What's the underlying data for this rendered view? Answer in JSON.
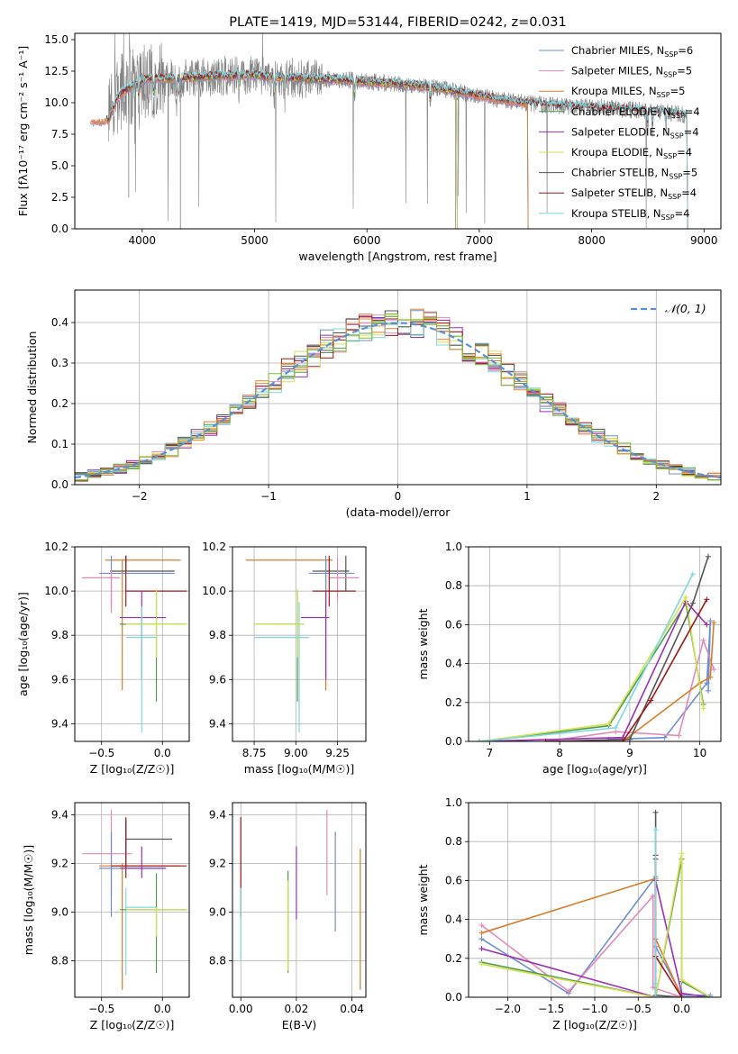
{
  "colors": {
    "c1": "#6f8fcf",
    "c2": "#e58ab8",
    "c3": "#d87e2a",
    "c4": "#4f9a4f",
    "c5": "#9b30b9",
    "c6": "#d5e24f",
    "c7": "#555555",
    "c8": "#a01818",
    "c9": "#7fd8e0",
    "hist_e": "#e58a30",
    "hist_f": "#7cc030",
    "grid": "#b0b0b0",
    "normal": "#5a8fd8"
  },
  "chart_data": [
    {
      "id": "spectrum",
      "type": "line",
      "title": "PLATE=1419, MJD=53144, FIBERID=0242, z=0.031",
      "xlabel": "wavelength [Angstrom, rest frame]",
      "ylabel": "Flux [fλ10⁻¹⁷ erg cm⁻² s⁻¹ A⁻¹]",
      "xlim": [
        3400,
        9150
      ],
      "ylim": [
        0,
        15.5
      ],
      "xticks": [
        4000,
        5000,
        6000,
        7000,
        8000,
        9000
      ],
      "yticks": [
        0.0,
        2.5,
        5.0,
        7.5,
        10.0,
        12.5,
        15.0
      ],
      "xtick_labels": [
        "4000",
        "5000",
        "6000",
        "7000",
        "8000",
        "9000"
      ],
      "ytick_labels": [
        "0.0",
        "2.5",
        "5.0",
        "7.5",
        "10.0",
        "12.5",
        "15.0"
      ],
      "legend_position": "upper-right",
      "legend": [
        {
          "main": "Chabrier MILES, N",
          "sub": "SSP",
          "tail": "=6",
          "color": "#6f8fcf"
        },
        {
          "main": "Salpeter MILES, N",
          "sub": "SSP",
          "tail": "=5",
          "color": "#e58ab8"
        },
        {
          "main": "Kroupa MILES, N",
          "sub": "SSP",
          "tail": "=5",
          "color": "#d87e2a"
        },
        {
          "main": "Chabrier ELODIE, N",
          "sub": "SSP",
          "tail": "=4",
          "color": "#4f9a4f"
        },
        {
          "main": "Salpeter ELODIE, N",
          "sub": "SSP",
          "tail": "=4",
          "color": "#9b30b9"
        },
        {
          "main": "Kroupa ELODIE, N",
          "sub": "SSP",
          "tail": "=4",
          "color": "#d5e24f"
        },
        {
          "main": "Chabrier STELIB, N",
          "sub": "SSP",
          "tail": "=5",
          "color": "#555555"
        },
        {
          "main": "Salpeter STELIB, N",
          "sub": "SSP",
          "tail": "=4",
          "color": "#a01818"
        },
        {
          "main": "Kroupa STELIB, N",
          "sub": "SSP",
          "tail": "=4",
          "color": "#7fd8e0"
        }
      ],
      "continuum": [
        [
          3700,
          8.6
        ],
        [
          3780,
          10.4
        ],
        [
          3850,
          11.0
        ],
        [
          3950,
          11.6
        ],
        [
          4050,
          11.9
        ],
        [
          4300,
          11.9
        ],
        [
          4600,
          12.1
        ],
        [
          5000,
          12.2
        ],
        [
          5200,
          12.0
        ],
        [
          5500,
          11.9
        ],
        [
          5800,
          11.8
        ],
        [
          6100,
          11.6
        ],
        [
          6400,
          11.4
        ],
        [
          6600,
          11.2
        ],
        [
          6900,
          10.7
        ],
        [
          7200,
          10.2
        ],
        [
          7500,
          9.9
        ],
        [
          7800,
          9.7
        ],
        [
          8100,
          9.6
        ],
        [
          8400,
          9.4
        ],
        [
          8700,
          9.2
        ],
        [
          8850,
          9.0
        ]
      ],
      "model_ranges": {
        "miles": [
          3540,
          7430
        ],
        "elodie": [
          3850,
          6800
        ],
        "stelib": [
          3680,
          8850
        ]
      },
      "data_range": [
        3700,
        8850
      ]
    },
    {
      "id": "residuals",
      "type": "histogram",
      "xlabel": "(data-model)/error",
      "ylabel": "Normed distribution",
      "xlim": [
        -2.5,
        2.5
      ],
      "ylim": [
        0,
        0.48
      ],
      "xticks": [
        -2,
        -1,
        0,
        1,
        2
      ],
      "yticks": [
        0.0,
        0.1,
        0.2,
        0.3,
        0.4
      ],
      "xtick_labels": [
        "−2",
        "−1",
        "0",
        "1",
        "2"
      ],
      "ytick_labels": [
        "0.0",
        "0.1",
        "0.2",
        "0.3",
        "0.4"
      ],
      "bin_width": 0.1,
      "legend": [
        {
          "label": "𝒩(0, 1)",
          "color": "#5a8fd8",
          "dashed": true
        }
      ],
      "legend_position": "upper-right"
    },
    {
      "id": "age_vs_Z",
      "type": "errorbar",
      "xlabel": "Z [log₁₀(Z/Z☉)]",
      "ylabel": "age  [log₁₀(age/yr)]",
      "xlim": [
        -0.72,
        0.22
      ],
      "ylim": [
        9.32,
        10.2
      ],
      "xticks": [
        -0.5,
        0.0
      ],
      "yticks": [
        9.4,
        9.6,
        9.8,
        10.0,
        10.2
      ],
      "xtick_labels": [
        "−0.5",
        "0.0"
      ],
      "ytick_labels": [
        "9.4",
        "9.6",
        "9.8",
        "10.0",
        "10.2"
      ],
      "points": [
        {
          "x": -0.33,
          "y": 10.14,
          "xlo": -0.47,
          "xhi": 0.15,
          "ylo": 9.55,
          "yhi": 10.14,
          "color": "#d87e2a"
        },
        {
          "x": -0.3,
          "y": 10.09,
          "xlo": -0.43,
          "xhi": 0.1,
          "ylo": 10.09,
          "yhi": 10.16,
          "color": "#555555"
        },
        {
          "x": -0.42,
          "y": 10.08,
          "xlo": -0.52,
          "xhi": 0.1,
          "ylo": 9.93,
          "yhi": 10.16,
          "color": "#6f8fcf"
        },
        {
          "x": -0.42,
          "y": 10.06,
          "xlo": -0.66,
          "xhi": -0.35,
          "ylo": 9.9,
          "yhi": 10.1,
          "color": "#e58ab8"
        },
        {
          "x": -0.3,
          "y": 10.0,
          "xlo": -0.3,
          "xhi": 0.2,
          "ylo": 9.93,
          "yhi": 10.16,
          "color": "#a01818"
        },
        {
          "x": -0.17,
          "y": 9.88,
          "xlo": -0.35,
          "xhi": 0.03,
          "ylo": 9.6,
          "yhi": 10.0,
          "color": "#9b30b9"
        },
        {
          "x": -0.05,
          "y": 9.85,
          "xlo": -0.35,
          "xhi": 0.2,
          "ylo": 9.5,
          "yhi": 10.0,
          "color": "#4f9a4f"
        },
        {
          "x": -0.05,
          "y": 9.85,
          "xlo": -0.3,
          "xhi": 0.2,
          "ylo": 9.7,
          "yhi": 10.01,
          "color": "#d5e24f"
        },
        {
          "x": -0.17,
          "y": 9.79,
          "xlo": -0.3,
          "xhi": -0.05,
          "ylo": 9.36,
          "yhi": 9.93,
          "color": "#7fd8e0"
        }
      ]
    },
    {
      "id": "age_vs_mass",
      "type": "errorbar",
      "xlabel": "mass [log₁₀(M/M☉)]",
      "ylabel": "",
      "xlim": [
        8.62,
        9.42
      ],
      "ylim": [
        9.32,
        10.2
      ],
      "xticks": [
        8.75,
        9.0,
        9.25
      ],
      "yticks": [
        9.4,
        9.6,
        9.8,
        10.0,
        10.2
      ],
      "xtick_labels": [
        "8.75",
        "9.00",
        "9.25"
      ],
      "ytick_labels": [
        "9.4",
        "9.6",
        "9.8",
        "10.0",
        "10.2"
      ],
      "points": [
        {
          "x": 9.18,
          "y": 10.14,
          "xlo": 8.7,
          "xhi": 9.22,
          "ylo": 9.55,
          "yhi": 10.14,
          "color": "#d87e2a"
        },
        {
          "x": 9.3,
          "y": 10.09,
          "xlo": 9.1,
          "xhi": 9.32,
          "ylo": 10.0,
          "yhi": 10.16,
          "color": "#555555"
        },
        {
          "x": 9.18,
          "y": 10.08,
          "xlo": 9.08,
          "xhi": 9.35,
          "ylo": 9.92,
          "yhi": 10.16,
          "color": "#6f8fcf"
        },
        {
          "x": 9.25,
          "y": 10.06,
          "xlo": 9.2,
          "xhi": 9.38,
          "ylo": 9.95,
          "yhi": 10.15,
          "color": "#e58ab8"
        },
        {
          "x": 9.2,
          "y": 10.0,
          "xlo": 9.1,
          "xhi": 9.36,
          "ylo": 9.93,
          "yhi": 10.16,
          "color": "#a01818"
        },
        {
          "x": 9.18,
          "y": 9.88,
          "xlo": 9.03,
          "xhi": 9.2,
          "ylo": 9.6,
          "yhi": 10.0,
          "color": "#9b30b9"
        },
        {
          "x": 9.01,
          "y": 9.85,
          "xlo": 8.75,
          "xhi": 9.05,
          "ylo": 9.5,
          "yhi": 10.0,
          "color": "#4f9a4f"
        },
        {
          "x": 9.01,
          "y": 9.85,
          "xlo": 8.75,
          "xhi": 9.05,
          "ylo": 9.7,
          "yhi": 10.01,
          "color": "#d5e24f"
        },
        {
          "x": 9.02,
          "y": 9.79,
          "xlo": 8.75,
          "xhi": 9.08,
          "ylo": 9.36,
          "yhi": 9.95,
          "color": "#7fd8e0"
        }
      ]
    },
    {
      "id": "weight_vs_age",
      "type": "line",
      "xlabel": "age  [log₁₀(age/yr)]",
      "ylabel": "mass weight",
      "xlim": [
        6.7,
        10.3
      ],
      "ylim": [
        0,
        1.0
      ],
      "xticks": [
        7,
        8,
        9,
        10
      ],
      "yticks": [
        0.0,
        0.2,
        0.4,
        0.6,
        0.8,
        1.0
      ],
      "xtick_labels": [
        "7",
        "8",
        "9",
        "10"
      ],
      "ytick_labels": [
        "0.0",
        "0.2",
        "0.4",
        "0.6",
        "0.8",
        "1.0"
      ],
      "series": [
        {
          "color": "#6f8fcf",
          "x": [
            8.7,
            9.5,
            10.1,
            10.15,
            10.12
          ],
          "y": [
            0.01,
            0.02,
            0.3,
            0.62,
            0.26
          ]
        },
        {
          "color": "#e58ab8",
          "x": [
            7.8,
            8.8,
            9.7,
            10.05,
            10.2
          ],
          "y": [
            0.0,
            0.05,
            0.03,
            0.52,
            0.37
          ]
        },
        {
          "color": "#d87e2a",
          "x": [
            7.8,
            8.9,
            10.0,
            10.15,
            10.2
          ],
          "y": [
            0.0,
            0.0,
            0.3,
            0.33,
            0.61
          ]
        },
        {
          "color": "#4f9a4f",
          "x": [
            6.85,
            8.7,
            9.8,
            10.05
          ],
          "y": [
            0.0,
            0.08,
            0.71,
            0.19
          ]
        },
        {
          "color": "#9b30b9",
          "x": [
            6.85,
            8.9,
            9.8,
            10.1
          ],
          "y": [
            0.0,
            0.02,
            0.72,
            0.6
          ]
        },
        {
          "color": "#d5e24f",
          "x": [
            6.85,
            8.7,
            9.8,
            10.05
          ],
          "y": [
            0.0,
            0.09,
            0.74,
            0.17
          ]
        },
        {
          "color": "#555555",
          "x": [
            7.8,
            9.0,
            9.9,
            10.12
          ],
          "y": [
            0.0,
            0.01,
            0.71,
            0.95
          ]
        },
        {
          "color": "#a01818",
          "x": [
            7.8,
            8.9,
            9.3,
            10.1
          ],
          "y": [
            0.0,
            0.0,
            0.21,
            0.73
          ]
        },
        {
          "color": "#7fd8e0",
          "x": [
            6.85,
            8.8,
            9.9
          ],
          "y": [
            0.0,
            0.07,
            0.86
          ]
        }
      ]
    },
    {
      "id": "mass_vs_Z",
      "type": "errorbar",
      "xlabel": "Z [log₁₀(Z/Z☉)]",
      "ylabel": "mass [log₁₀(M/M☉)]",
      "xlim": [
        -0.72,
        0.22
      ],
      "ylim": [
        8.65,
        9.45
      ],
      "xticks": [
        -0.5,
        0.0
      ],
      "yticks": [
        8.8,
        9.0,
        9.2,
        9.4
      ],
      "xtick_labels": [
        "−0.5",
        "0.0"
      ],
      "ytick_labels": [
        "8.8",
        "9.0",
        "9.2",
        "9.4"
      ],
      "points": [
        {
          "x": -0.3,
          "y": 9.3,
          "xlo": -0.3,
          "xhi": 0.08,
          "ylo": 9.18,
          "yhi": 9.38,
          "color": "#555555"
        },
        {
          "x": -0.42,
          "y": 9.24,
          "xlo": -0.66,
          "xhi": -0.25,
          "ylo": 9.07,
          "yhi": 9.42,
          "color": "#e58ab8"
        },
        {
          "x": -0.42,
          "y": 9.18,
          "xlo": -0.52,
          "xhi": 0.02,
          "ylo": 8.98,
          "yhi": 9.33,
          "color": "#6f8fcf"
        },
        {
          "x": -0.33,
          "y": 9.19,
          "xlo": -0.52,
          "xhi": 0.15,
          "ylo": 8.68,
          "yhi": 9.2,
          "color": "#d87e2a"
        },
        {
          "x": -0.3,
          "y": 9.19,
          "xlo": -0.42,
          "xhi": 0.2,
          "ylo": 9.14,
          "yhi": 9.39,
          "color": "#a01818"
        },
        {
          "x": -0.17,
          "y": 9.18,
          "xlo": -0.35,
          "xhi": 0.03,
          "ylo": 9.14,
          "yhi": 9.27,
          "color": "#9b30b9"
        },
        {
          "x": -0.3,
          "y": 9.02,
          "xlo": -0.3,
          "xhi": -0.05,
          "ylo": 8.74,
          "yhi": 9.1,
          "color": "#7fd8e0"
        },
        {
          "x": -0.05,
          "y": 9.01,
          "xlo": -0.35,
          "xhi": 0.2,
          "ylo": 8.75,
          "yhi": 9.16,
          "color": "#4f9a4f"
        },
        {
          "x": -0.05,
          "y": 9.01,
          "xlo": -0.3,
          "xhi": 0.2,
          "ylo": 8.9,
          "yhi": 9.02,
          "color": "#d5e24f"
        }
      ]
    },
    {
      "id": "mass_vs_ebv",
      "type": "errorbar",
      "xlabel": "E(B-V)",
      "ylabel": "",
      "xlim": [
        -0.003,
        0.045
      ],
      "ylim": [
        8.65,
        9.45
      ],
      "xticks": [
        0.0,
        0.02,
        0.04
      ],
      "yticks": [
        8.8,
        9.0,
        9.2,
        9.4
      ],
      "xtick_labels": [
        "0.00",
        "0.02",
        "0.04"
      ],
      "ytick_labels": [
        "8.8",
        "9.0",
        "9.2",
        "9.4"
      ],
      "points": [
        {
          "x": 0.0,
          "y": 9.18,
          "ylo": 8.98,
          "yhi": 9.39,
          "color": "#a01818"
        },
        {
          "x": 0.0,
          "y": 9.02,
          "ylo": 8.8,
          "yhi": 9.1,
          "color": "#7fd8e0"
        },
        {
          "x": 0.017,
          "y": 9.01,
          "ylo": 8.75,
          "yhi": 9.17,
          "color": "#4f9a4f"
        },
        {
          "x": 0.017,
          "y": 9.01,
          "ylo": 8.76,
          "yhi": 9.13,
          "color": "#d5e24f"
        },
        {
          "x": 0.02,
          "y": 9.18,
          "ylo": 8.97,
          "yhi": 9.27,
          "color": "#9b30b9"
        },
        {
          "x": 0.031,
          "y": 9.24,
          "ylo": 9.07,
          "yhi": 9.42,
          "color": "#e58ab8"
        },
        {
          "x": 0.034,
          "y": 9.18,
          "ylo": 8.92,
          "yhi": 9.33,
          "color": "#6f8fcf"
        },
        {
          "x": 0.043,
          "y": 9.19,
          "ylo": 8.68,
          "yhi": 9.26,
          "color": "#d87e2a"
        }
      ]
    },
    {
      "id": "weight_vs_Z",
      "type": "line",
      "xlabel": "Z [log₁₀(Z/Z☉)]",
      "ylabel": "mass weight",
      "xlim": [
        -2.45,
        0.45
      ],
      "ylim": [
        0,
        1.0
      ],
      "xticks": [
        -2.0,
        -1.5,
        -1.0,
        -0.5,
        0.0
      ],
      "yticks": [
        0.0,
        0.2,
        0.4,
        0.6,
        0.8,
        1.0
      ],
      "xtick_labels": [
        "−2.0",
        "−1.5",
        "−1.0",
        "−0.5",
        "0.0"
      ],
      "ytick_labels": [
        "0.0",
        "0.2",
        "0.4",
        "0.6",
        "0.8",
        "1.0"
      ],
      "series": [
        {
          "color": "#6f8fcf",
          "x": [
            -2.3,
            -1.3,
            -0.3,
            -0.3,
            0.0,
            0.33
          ],
          "y": [
            0.3,
            0.02,
            0.62,
            0.26,
            0.01,
            0.01
          ]
        },
        {
          "color": "#e58ab8",
          "x": [
            -2.3,
            -1.3,
            -0.33,
            -0.33,
            0.0,
            0.33
          ],
          "y": [
            0.37,
            0.03,
            0.52,
            0.05,
            0.0,
            0.0
          ]
        },
        {
          "color": "#d87e2a",
          "x": [
            -2.3,
            -0.3,
            -0.3,
            0.0,
            0.0,
            0.33
          ],
          "y": [
            0.33,
            0.61,
            0.3,
            0.0,
            0.0,
            0.0
          ]
        },
        {
          "color": "#4f9a4f",
          "x": [
            -2.3,
            -0.3,
            0.0,
            0.0,
            0.33
          ],
          "y": [
            0.18,
            0.0,
            0.71,
            0.08,
            0.0
          ]
        },
        {
          "color": "#9b30b9",
          "x": [
            -2.3,
            -0.3,
            -0.3,
            0.0,
            0.33
          ],
          "y": [
            0.25,
            0.0,
            0.6,
            0.02,
            0.0
          ]
        },
        {
          "color": "#d5e24f",
          "x": [
            -2.3,
            -0.3,
            0.0,
            0.0,
            0.33
          ],
          "y": [
            0.17,
            0.0,
            0.74,
            0.09,
            0.0
          ]
        },
        {
          "color": "#555555",
          "x": [
            -0.3,
            -0.3,
            -0.3,
            0.0,
            0.33
          ],
          "y": [
            0.95,
            0.71,
            0.01,
            0.0,
            0.0
          ]
        },
        {
          "color": "#a01818",
          "x": [
            -0.3,
            -0.3,
            0.0,
            0.33
          ],
          "y": [
            0.73,
            0.21,
            0.0,
            0.0
          ]
        },
        {
          "color": "#7fd8e0",
          "x": [
            -0.3,
            -0.3,
            -0.3,
            0.33
          ],
          "y": [
            0.86,
            0.07,
            0.0,
            0.0
          ]
        }
      ]
    }
  ]
}
